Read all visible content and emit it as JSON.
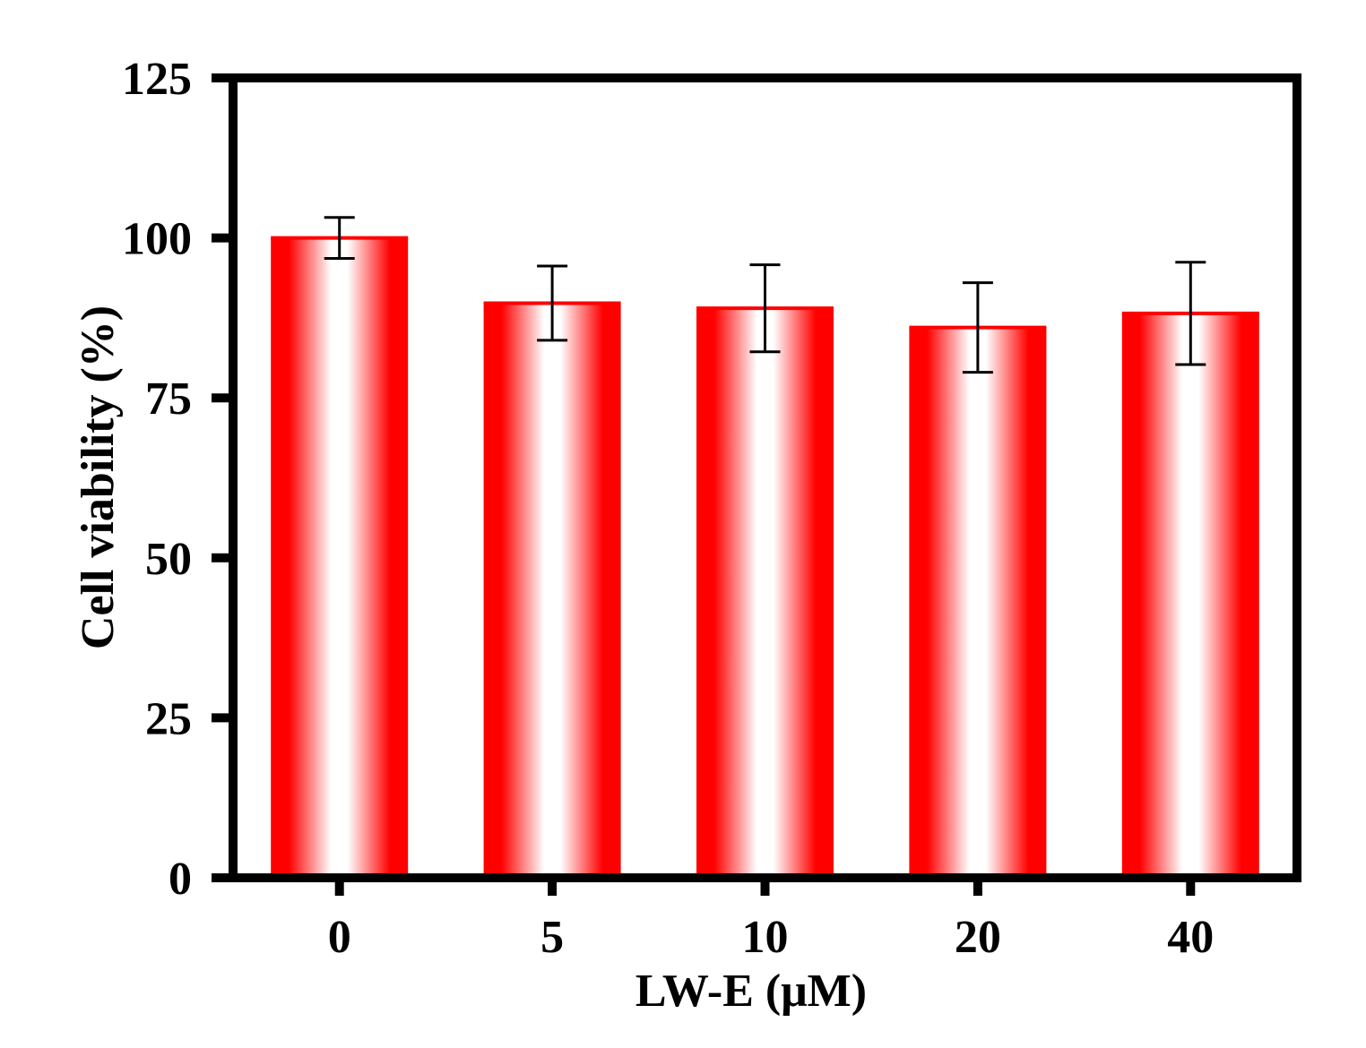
{
  "chart_data": {
    "type": "bar",
    "title": "",
    "xlabel": "LW-E (μM)",
    "ylabel": "Cell viability (%)",
    "categories": [
      "0",
      "5",
      "10",
      "20",
      "40"
    ],
    "values": [
      100.0,
      89.8,
      89.0,
      86.0,
      88.2
    ],
    "errors": [
      3.2,
      5.8,
      6.8,
      7.0,
      8.0
    ],
    "ylim": [
      0,
      125
    ],
    "yticks": [
      "0",
      "25",
      "50",
      "75",
      "100",
      "125"
    ],
    "grid": false,
    "legend": "none",
    "colors": {
      "bar_edge": "#ff0000",
      "bar_center": "#ffffff",
      "axis": "#000000",
      "error_bar": "#000000"
    }
  }
}
